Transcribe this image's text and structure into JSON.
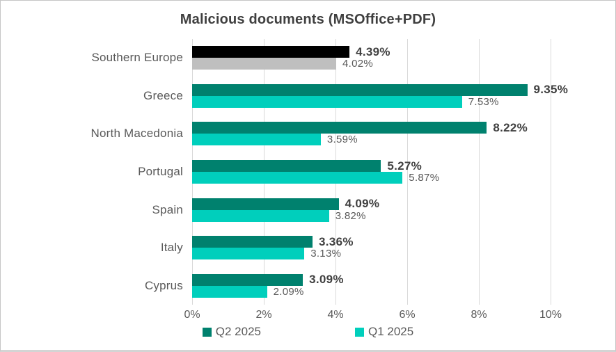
{
  "chart_data": {
    "type": "bar",
    "orientation": "horizontal",
    "title": "Malicious documents (MSOffice+PDF)",
    "categories": [
      "Southern Europe",
      "Greece",
      "North Macedonia",
      "Portugal",
      "Spain",
      "Italy",
      "Cyprus"
    ],
    "series": [
      {
        "name": "Q2 2025",
        "color": "#00816E",
        "values": [
          4.39,
          9.35,
          8.22,
          5.27,
          4.09,
          3.36,
          3.09
        ],
        "labels": [
          "4.39%",
          "9.35%",
          "8.22%",
          "5.27%",
          "4.09%",
          "3.36%",
          "3.09%"
        ],
        "point_colors": [
          "#000000",
          null,
          null,
          null,
          null,
          null,
          null
        ]
      },
      {
        "name": "Q1 2025",
        "color": "#00CFBC",
        "values": [
          4.02,
          7.53,
          3.59,
          5.87,
          3.82,
          3.13,
          2.09
        ],
        "labels": [
          "4.02%",
          "7.53%",
          "3.59%",
          "5.87%",
          "3.82%",
          "3.13%",
          "2.09%"
        ],
        "point_colors": [
          "#BFBFBF",
          null,
          null,
          null,
          null,
          null,
          null
        ]
      }
    ],
    "x_ticks": [
      {
        "value": 0,
        "label": "0%"
      },
      {
        "value": 2,
        "label": "2%"
      },
      {
        "value": 4,
        "label": "4%"
      },
      {
        "value": 6,
        "label": "6%"
      },
      {
        "value": 8,
        "label": "8%"
      },
      {
        "value": 10,
        "label": "10%"
      }
    ],
    "xlim": [
      0,
      10
    ],
    "grid": true,
    "legend_position": "bottom",
    "colors": {
      "grid": "#D9D9D9",
      "title_text": "#3F3F3F",
      "bold_value_text": "#404040",
      "regular_text": "#595959"
    }
  }
}
